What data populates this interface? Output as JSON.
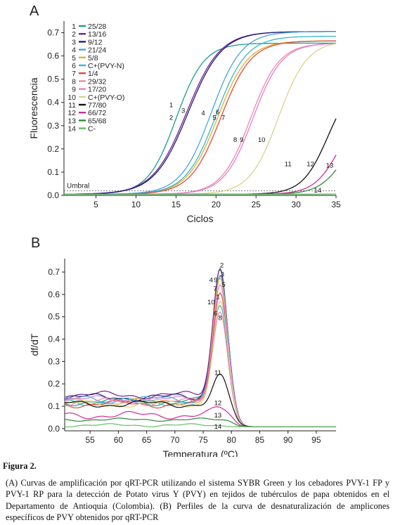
{
  "chart_data": [
    {
      "panel": "A",
      "type": "line",
      "xlabel": "Ciclos",
      "ylabel": "Fluorescencia",
      "xlim": [
        1,
        35
      ],
      "ylim": [
        0,
        0.75
      ],
      "xticks": [
        5,
        10,
        15,
        20,
        25,
        30,
        35
      ],
      "yticks": [
        0.0,
        0.1,
        0.2,
        0.3,
        0.4,
        0.5,
        0.6,
        0.7
      ],
      "grid": false,
      "legend_position": "top-left",
      "threshold": {
        "label": "Umbral",
        "value": 0.02
      },
      "series": [
        {
          "id": "1",
          "name": "25/28",
          "color": "#17a08a",
          "plateau": 0.65,
          "midpoint": 15.0,
          "slope": 1.75
        },
        {
          "id": "2",
          "name": "13/16",
          "color": "#7a1f8c",
          "plateau": 0.7,
          "midpoint": 16.3,
          "slope": 2.1
        },
        {
          "id": "3",
          "name": "9/12",
          "color": "#1a237e",
          "plateau": 0.7,
          "midpoint": 16.5,
          "slope": 2.1
        },
        {
          "id": "4",
          "name": "21/24",
          "color": "#4aa3df",
          "plateau": 0.7,
          "midpoint": 19.4,
          "slope": 1.9
        },
        {
          "id": "5",
          "name": "5/8",
          "color": "#e3b02a",
          "plateau": 0.66,
          "midpoint": 20.2,
          "slope": 1.9
        },
        {
          "id": "6",
          "name": "C+(PVY-N)",
          "color": "#35b5cf",
          "plateau": 0.68,
          "midpoint": 20.0,
          "slope": 1.9
        },
        {
          "id": "7",
          "name": "1/4",
          "color": "#e24b3b",
          "plateau": 0.66,
          "midpoint": 20.6,
          "slope": 1.9
        },
        {
          "id": "8",
          "name": "29/32",
          "color": "#ec8aa3",
          "plateau": 0.65,
          "midpoint": 24.3,
          "slope": 1.8
        },
        {
          "id": "9",
          "name": "17/20",
          "color": "#e07fd4",
          "plateau": 0.65,
          "midpoint": 24.6,
          "slope": 1.8
        },
        {
          "id": "10",
          "name": "C+(PVY-O)",
          "color": "#d7d58a",
          "plateau": 0.66,
          "midpoint": 27.8,
          "slope": 1.8
        },
        {
          "id": "11",
          "name": "77/80",
          "color": "#111111",
          "plateau": 0.5,
          "midpoint": 34.0,
          "slope": 1.6
        },
        {
          "id": "12",
          "name": "66/72",
          "color": "#d12a9a",
          "plateau": 0.4,
          "midpoint": 35.5,
          "slope": 1.6
        },
        {
          "id": "13",
          "name": "65/68",
          "color": "#2e8b3a",
          "plateau": 0.3,
          "midpoint": 36.0,
          "slope": 1.6
        },
        {
          "id": "14",
          "name": "C-",
          "color": "#66bb6a",
          "plateau": 0.01,
          "midpoint": 40.0,
          "slope": 2.0
        }
      ],
      "curve_labels": [
        {
          "text": "1",
          "x": 14.4,
          "y": 0.38
        },
        {
          "text": "2",
          "x": 14.4,
          "y": 0.325
        },
        {
          "text": "3",
          "x": 15.9,
          "y": 0.355
        },
        {
          "text": "4",
          "x": 18.4,
          "y": 0.345
        },
        {
          "text": "5",
          "x": 19.8,
          "y": 0.325
        },
        {
          "text": "6",
          "x": 20.2,
          "y": 0.35
        },
        {
          "text": "7",
          "x": 20.9,
          "y": 0.325
        },
        {
          "text": "8",
          "x": 22.4,
          "y": 0.23
        },
        {
          "text": "9",
          "x": 23.2,
          "y": 0.23
        },
        {
          "text": "10",
          "x": 25.7,
          "y": 0.23
        },
        {
          "text": "11",
          "x": 29.0,
          "y": 0.125
        },
        {
          "text": "12",
          "x": 31.8,
          "y": 0.125
        },
        {
          "text": "13",
          "x": 34.2,
          "y": 0.12
        },
        {
          "text": "14",
          "x": 32.7,
          "y": 0.012
        }
      ]
    },
    {
      "panel": "B",
      "type": "line",
      "xlabel": "Temperatura (ºC)",
      "ylabel": "df/dT",
      "xlim": [
        50.5,
        98.5
      ],
      "ylim": [
        -0.01,
        0.76
      ],
      "xticks": [
        55,
        60,
        65,
        70,
        75,
        80,
        85,
        90,
        95
      ],
      "yticks": [
        0.0,
        0.1,
        0.2,
        0.3,
        0.4,
        0.5,
        0.6,
        0.7
      ],
      "grid": false,
      "melt_peak": 78,
      "series": [
        {
          "id": "1",
          "color": "#17a08a",
          "peak": 0.72,
          "baseline": 0.12
        },
        {
          "id": "2",
          "color": "#7a1f8c",
          "peak": 0.725,
          "baseline": 0.15
        },
        {
          "id": "3",
          "color": "#1a237e",
          "peak": 0.7,
          "baseline": 0.14
        },
        {
          "id": "4",
          "color": "#4aa3df",
          "peak": 0.68,
          "baseline": 0.13
        },
        {
          "id": "5",
          "color": "#e3b02a",
          "peak": 0.66,
          "baseline": 0.12
        },
        {
          "id": "6",
          "color": "#35b5cf",
          "peak": 0.55,
          "baseline": 0.12
        },
        {
          "id": "7",
          "color": "#e24b3b",
          "peak": 0.61,
          "baseline": 0.11
        },
        {
          "id": "8",
          "color": "#ec8aa3",
          "peak": 0.53,
          "baseline": 0.12
        },
        {
          "id": "9",
          "color": "#e07fd4",
          "peak": 0.66,
          "baseline": 0.13
        },
        {
          "id": "10",
          "color": "#d7d58a",
          "peak": 0.57,
          "baseline": 0.11
        },
        {
          "id": "11",
          "color": "#111111",
          "peak": 0.23,
          "baseline": 0.11
        },
        {
          "id": "12",
          "color": "#d12a9a",
          "peak": 0.09,
          "baseline": 0.06
        },
        {
          "id": "13",
          "color": "#2e8b3a",
          "peak": 0.04,
          "baseline": 0.04
        },
        {
          "id": "14",
          "color": "#66bb6a",
          "peak": 0.015,
          "baseline": 0.015
        }
      ],
      "curve_labels": [
        {
          "text": "2",
          "x": 78.3,
          "y": 0.72
        },
        {
          "text": "3",
          "x": 78.4,
          "y": 0.68
        },
        {
          "text": "4",
          "x": 76.4,
          "y": 0.655
        },
        {
          "text": "9",
          "x": 77.2,
          "y": 0.655
        },
        {
          "text": "5",
          "x": 78.6,
          "y": 0.635
        },
        {
          "text": "7",
          "x": 77.1,
          "y": 0.615
        },
        {
          "text": "1",
          "x": 77.6,
          "y": 0.58
        },
        {
          "text": "10",
          "x": 76.4,
          "y": 0.555
        },
        {
          "text": "6",
          "x": 77.2,
          "y": 0.505
        },
        {
          "text": "8",
          "x": 78.0,
          "y": 0.485
        },
        {
          "text": "11",
          "x": 77.6,
          "y": 0.24
        },
        {
          "text": "12",
          "x": 77.6,
          "y": 0.105
        },
        {
          "text": "13",
          "x": 77.6,
          "y": 0.05
        },
        {
          "text": "14",
          "x": 77.6,
          "y": 0.0
        }
      ]
    }
  ],
  "caption": {
    "title": "Figura 2.",
    "body": "(A) Curvas de amplificación por qRT-PCR utilizando el sistema SYBR Green y los cebadores PVY-1 FP y PVY-1 RP para la detección de Potato virus Y (PVY) en tejidos de tubérculos de papa obtenidos en el Departamento de Antioquia (Colombia). (B) Perfiles de la curva de desnaturalización de amplicones específicos de PVY obtenidos por qRT-PCR"
  }
}
